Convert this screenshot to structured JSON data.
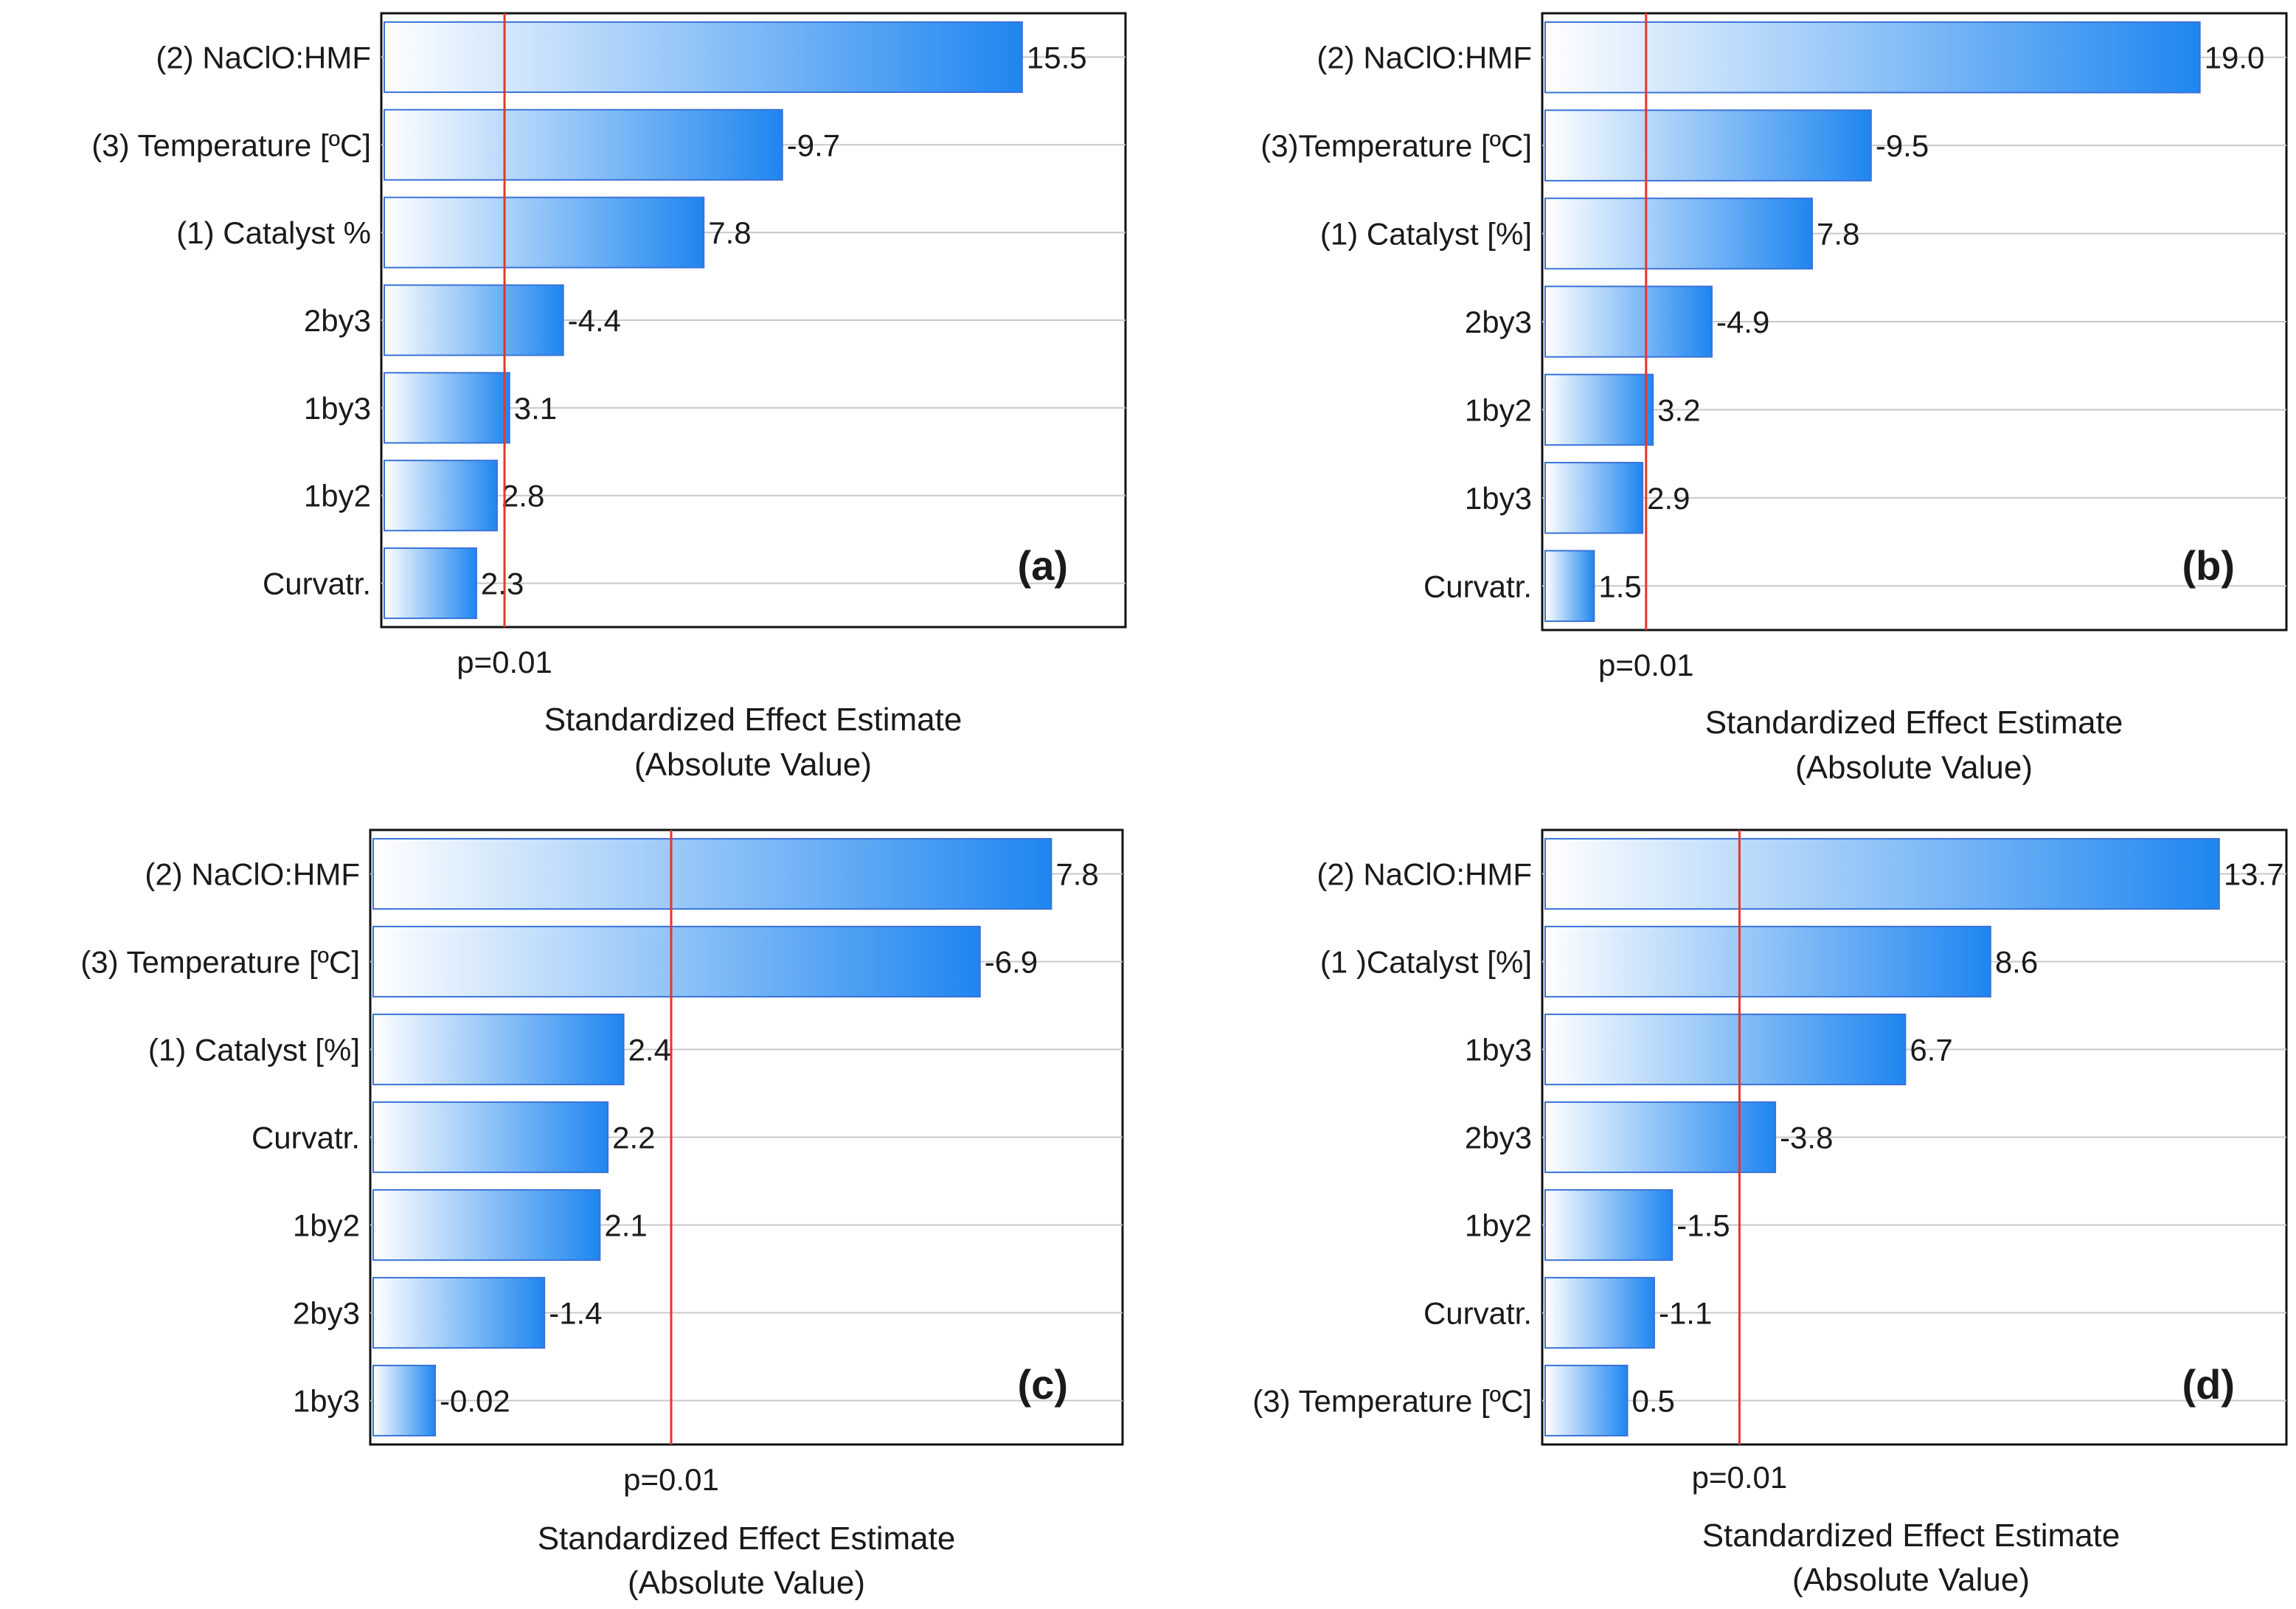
{
  "chart_data": [
    {
      "type": "bar",
      "orientation": "horizontal",
      "title": "",
      "panel_label": "(a)",
      "categories": [
        "(2) NaClO:HMF",
        "(3) Temperature [ºC]",
        "(1) Catalyst %",
        "2by3",
        "1by3",
        "1by2",
        "Curvatr."
      ],
      "values": [
        15.5,
        -9.7,
        7.8,
        -4.4,
        3.1,
        2.8,
        2.3
      ],
      "value_labels": [
        "15.5",
        "-9.7",
        "7.8",
        "-4.4",
        "3.1",
        "2.8",
        "2.3"
      ],
      "p_value": 2.98,
      "p_label": "p=0.01",
      "xlabel_line1": "Standardized Effect Estimate",
      "xlabel_line2": "(Absolute Value)",
      "xlim": [
        0,
        18
      ],
      "grid": true,
      "bar_color_start": "#ffffff",
      "bar_color_end": "#1e86f0",
      "bar_stroke": "#3a73d8",
      "p_line_color": "#e8352c"
    },
    {
      "type": "bar",
      "orientation": "horizontal",
      "title": "",
      "panel_label": "(b)",
      "categories": [
        "(2) NaClO:HMF",
        "(3)Temperature  [ºC]",
        "(1) Catalyst [%]",
        "2by3",
        "1by2",
        "1by3",
        "Curvatr."
      ],
      "values": [
        19.0,
        -9.5,
        7.8,
        -4.9,
        3.2,
        2.9,
        1.5
      ],
      "value_labels": [
        "19.0",
        "-9.5",
        "7.8",
        "-4.9",
        "3.2",
        "2.9",
        "1.5"
      ],
      "p_value": 3.0,
      "p_label": "p=0.01",
      "xlabel_line1": "Standardized Effect Estimate",
      "xlabel_line2": "(Absolute Value)",
      "xlim": [
        0,
        21.5
      ],
      "grid": true,
      "bar_color_start": "#ffffff",
      "bar_color_end": "#1e86f0",
      "bar_stroke": "#3a73d8",
      "p_line_color": "#e8352c"
    },
    {
      "type": "bar",
      "orientation": "horizontal",
      "title": "",
      "panel_label": "(c)",
      "categories": [
        "(2) NaClO:HMF",
        "(3) Temperature [ºC]",
        "(1) Catalyst [%]",
        "Curvatr.",
        "1by2",
        "2by3",
        "1by3"
      ],
      "values": [
        7.8,
        -6.9,
        2.4,
        2.2,
        2.1,
        -1.4,
        -0.02
      ],
      "value_labels": [
        "7.8",
        "-6.9",
        "2.4",
        "2.2",
        "2.1",
        "-1.4",
        "-0.02"
      ],
      "p_value": 3.0,
      "p_label": "p=0.01",
      "xlabel_line1": "Standardized Effect Estimate",
      "xlabel_line2": "(Absolute Value)",
      "xlim": [
        -0.8,
        8.7
      ],
      "grid": true,
      "bar_color_start": "#ffffff",
      "bar_color_end": "#1e86f0",
      "bar_stroke": "#3a73d8",
      "p_line_color": "#e8352c"
    },
    {
      "type": "bar",
      "orientation": "horizontal",
      "title": "",
      "panel_label": "(d)",
      "categories": [
        "(2) NaClO:HMF",
        "(1 )Catalyst [%]",
        "1by3",
        "2by3",
        "1by2",
        "Curvatr.",
        "(3) Temperature [ºC]"
      ],
      "values": [
        13.7,
        8.6,
        6.7,
        -3.8,
        -1.5,
        -1.1,
        0.5
      ],
      "value_labels": [
        "13.7",
        "8.6",
        "6.7",
        "-3.8",
        "-1.5",
        "-1.1",
        "0.5"
      ],
      "p_value": 3.0,
      "p_label": "p=0.01",
      "xlabel_line1": "Standardized Effect Estimate",
      "xlabel_line2": "(Absolute Value)",
      "xlim": [
        -1.4,
        15.2
      ],
      "grid": true,
      "bar_color_start": "#ffffff",
      "bar_color_end": "#1e86f0",
      "bar_stroke": "#3a73d8",
      "p_line_color": "#e8352c"
    }
  ]
}
